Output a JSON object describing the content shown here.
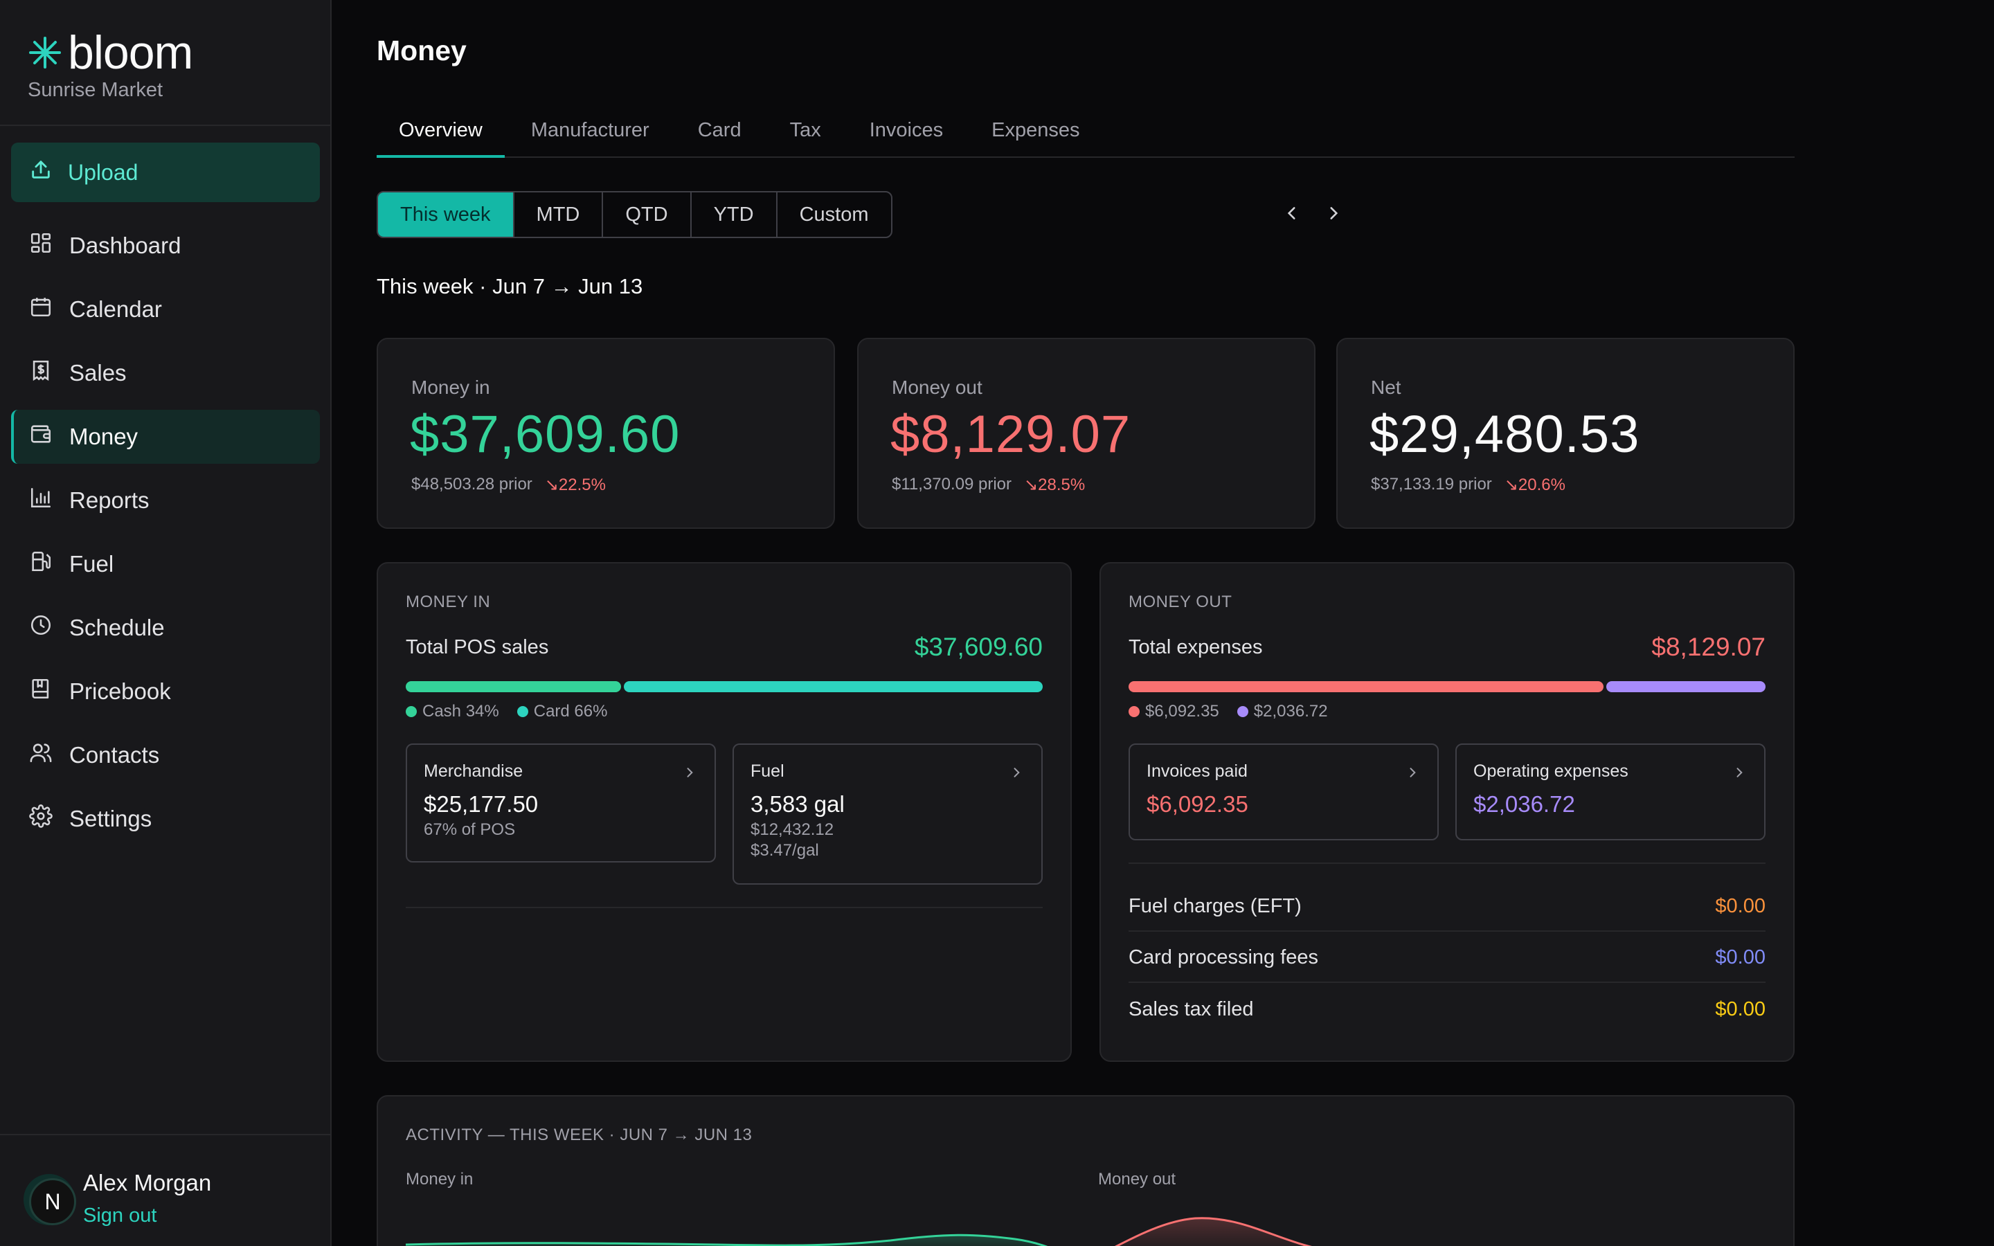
{
  "brand": {
    "name": "bloom",
    "store": "Sunrise Market"
  },
  "sidebar": {
    "upload_label": "Upload",
    "items": [
      {
        "label": "Dashboard",
        "icon": "dashboard-icon"
      },
      {
        "label": "Calendar",
        "icon": "calendar-icon"
      },
      {
        "label": "Sales",
        "icon": "receipt-dollar-icon"
      },
      {
        "label": "Money",
        "icon": "wallet-icon",
        "active": true
      },
      {
        "label": "Reports",
        "icon": "bar-chart-icon"
      },
      {
        "label": "Fuel",
        "icon": "fuel-pump-icon"
      },
      {
        "label": "Schedule",
        "icon": "clock-icon"
      },
      {
        "label": "Pricebook",
        "icon": "book-icon"
      },
      {
        "label": "Contacts",
        "icon": "users-icon"
      },
      {
        "label": "Settings",
        "icon": "gear-icon"
      }
    ]
  },
  "user": {
    "name": "Alex Morgan",
    "initial": "N",
    "signout": "Sign out"
  },
  "page": {
    "title": "Money"
  },
  "tabs": [
    "Overview",
    "Manufacturer",
    "Card",
    "Tax",
    "Invoices",
    "Expenses"
  ],
  "range": {
    "options": [
      "This week",
      "MTD",
      "QTD",
      "YTD",
      "Custom"
    ],
    "selected": "This week"
  },
  "period": "This week · Jun 7 → Jun 13",
  "kpis": [
    {
      "label": "Money in",
      "value": "$37,609.60",
      "prior": "$48,503.28 prior",
      "change": "↘22.5%",
      "color": "#34d399"
    },
    {
      "label": "Money out",
      "value": "$8,129.07",
      "prior": "$11,370.09 prior",
      "change": "↘28.5%",
      "color": "#f87171"
    },
    {
      "label": "Net",
      "value": "$29,480.53",
      "prior": "$37,133.19 prior",
      "change": "↘20.6%",
      "color": "#fafafa"
    }
  ],
  "money_in": {
    "title": "MONEY IN",
    "total_label": "Total POS sales",
    "total_value": "$37,609.60",
    "split": [
      {
        "label": "Cash 34%",
        "fraction": 0.34,
        "color": "#34d399"
      },
      {
        "label": "Card 66%",
        "fraction": 0.66,
        "color": "#2dd4bf"
      }
    ],
    "cards": [
      {
        "title": "Merchandise",
        "value": "$25,177.50",
        "lines": [
          "67% of POS"
        ]
      },
      {
        "title": "Fuel",
        "value": "3,583 gal",
        "lines": [
          "$12,432.12",
          "$3.47/gal"
        ]
      }
    ]
  },
  "money_out": {
    "title": "MONEY OUT",
    "total_label": "Total expenses",
    "total_value": "$8,129.07",
    "split": [
      {
        "label": "$6,092.35",
        "fraction": 0.749,
        "color": "#f87171"
      },
      {
        "label": "$2,036.72",
        "fraction": 0.251,
        "color": "#a78bfa"
      }
    ],
    "cards": [
      {
        "title": "Invoices paid",
        "value": "$6,092.35",
        "color": "#f87171"
      },
      {
        "title": "Operating expenses",
        "value": "$2,036.72",
        "color": "#a78bfa"
      }
    ],
    "lines": [
      {
        "label": "Fuel charges (EFT)",
        "value": "$0.00",
        "color": "#fb923c"
      },
      {
        "label": "Card processing fees",
        "value": "$0.00",
        "color": "#818cf8"
      },
      {
        "label": "Sales tax filed",
        "value": "$0.00",
        "color": "#facc15"
      }
    ]
  },
  "activity": {
    "title": "ACTIVITY — THIS WEEK · JUN 7 → JUN 13",
    "money_in_label": "Money in",
    "money_out_label": "Money out"
  }
}
